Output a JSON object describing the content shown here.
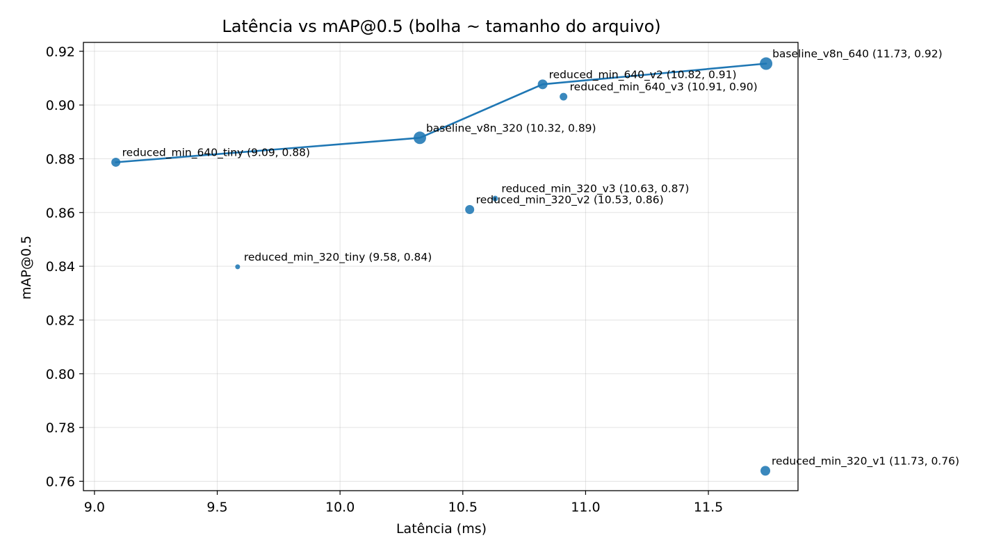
{
  "chart_data": {
    "type": "scatter",
    "title": "Latência vs mAP@0.5 (bolha ~ tamanho do arquivo)",
    "xlabel": "Latência (ms)",
    "ylabel": "mAP@0.5",
    "xlim": [
      8.955,
      11.865
    ],
    "ylim": [
      0.7565,
      0.9233
    ],
    "xticks": [
      9.0,
      9.5,
      10.0,
      10.5,
      11.0,
      11.5
    ],
    "xtick_labels": [
      "9.0",
      "9.5",
      "10.0",
      "10.5",
      "11.0",
      "11.5"
    ],
    "yticks": [
      0.76,
      0.78,
      0.8,
      0.82,
      0.84,
      0.86,
      0.88,
      0.9,
      0.92
    ],
    "ytick_labels": [
      "0.76",
      "0.78",
      "0.80",
      "0.82",
      "0.84",
      "0.86",
      "0.88",
      "0.90",
      "0.92"
    ],
    "grid": true,
    "color": "#1f77b4",
    "points": [
      {
        "label": "baseline_v8n_640 (11.73, 0.92)",
        "x": 11.735,
        "y": 0.9154,
        "size": 9
      },
      {
        "label": "reduced_min_640_v2 (10.82, 0.91)",
        "x": 10.825,
        "y": 0.9077,
        "size": 7
      },
      {
        "label": "reduced_min_640_v3 (10.91, 0.90)",
        "x": 10.91,
        "y": 0.9031,
        "size": 5.5
      },
      {
        "label": "baseline_v8n_320 (10.32, 0.89)",
        "x": 10.325,
        "y": 0.8878,
        "size": 9
      },
      {
        "label": "reduced_min_640_tiny (9.09, 0.88)",
        "x": 9.087,
        "y": 0.8787,
        "size": 6.5
      },
      {
        "label": "reduced_min_320_v3 (10.63, 0.87)",
        "x": 10.632,
        "y": 0.8652,
        "size": 4
      },
      {
        "label": "reduced_min_320_v2 (10.53, 0.86)",
        "x": 10.528,
        "y": 0.8611,
        "size": 6.5
      },
      {
        "label": "reduced_min_320_tiny (9.58, 0.84)",
        "x": 9.583,
        "y": 0.8398,
        "size": 3.5
      },
      {
        "label": "reduced_min_320_v1 (11.73, 0.76)",
        "x": 11.732,
        "y": 0.7639,
        "size": 7
      }
    ],
    "frontier": [
      {
        "x": 9.087,
        "y": 0.8787
      },
      {
        "x": 10.325,
        "y": 0.8878
      },
      {
        "x": 10.825,
        "y": 0.9077
      },
      {
        "x": 11.735,
        "y": 0.9154
      }
    ]
  }
}
